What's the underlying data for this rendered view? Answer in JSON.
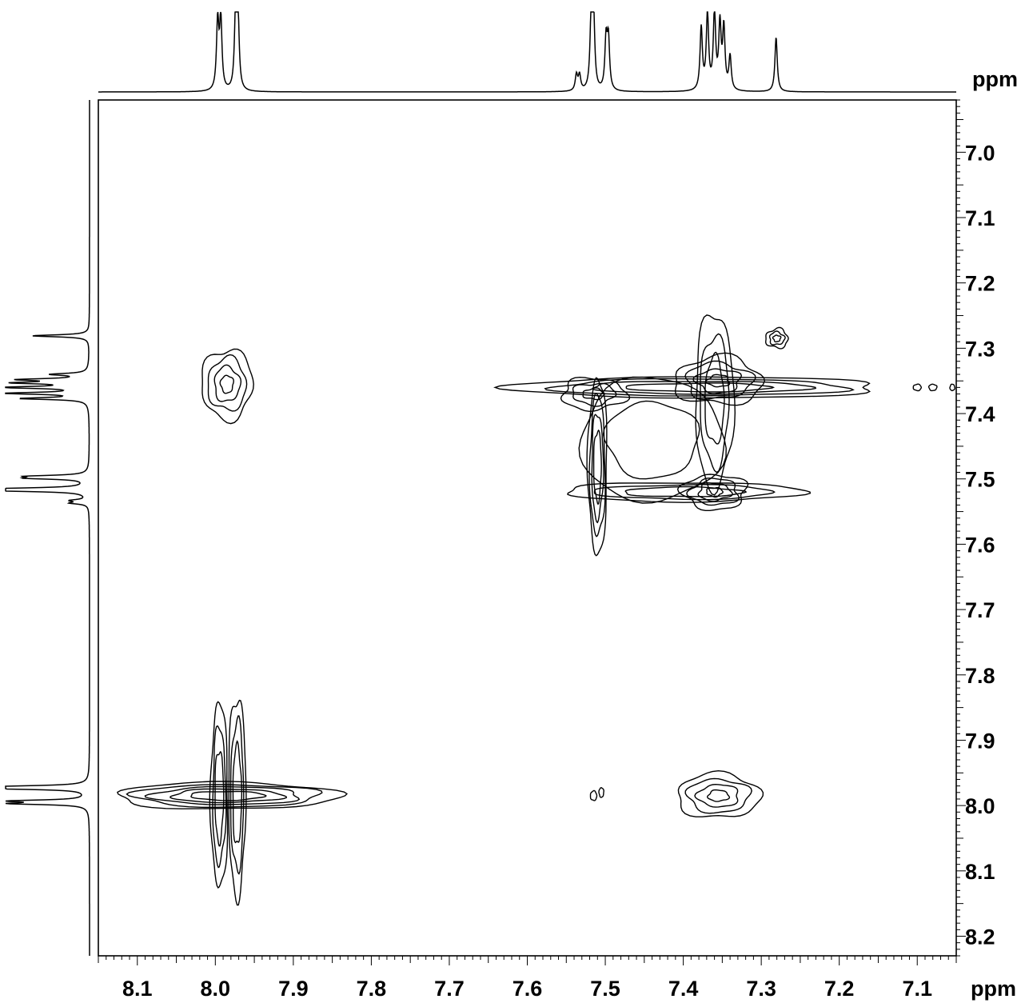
{
  "chart_data": {
    "type": "contour",
    "x_axis": {
      "unit": "ppm",
      "range": [
        8.15,
        7.05
      ],
      "reversed": true,
      "ticks": [
        8.1,
        8.0,
        7.9,
        7.8,
        7.7,
        7.6,
        7.5,
        7.4,
        7.3,
        7.2,
        7.1
      ],
      "tick_labels": [
        "8.1",
        "8.0",
        "7.9",
        "7.8",
        "7.7",
        "7.6",
        "7.5",
        "7.4",
        "7.3",
        "7.2",
        "7.1"
      ]
    },
    "y_axis": {
      "unit": "ppm",
      "range": [
        6.92,
        8.23
      ],
      "position": "right",
      "ticks": [
        7.0,
        7.1,
        7.2,
        7.3,
        7.4,
        7.5,
        7.6,
        7.7,
        7.8,
        7.9,
        8.0,
        8.1,
        8.2
      ],
      "tick_labels": [
        "7.0",
        "7.1",
        "7.2",
        "7.3",
        "7.4",
        "7.5",
        "7.6",
        "7.7",
        "7.8",
        "7.9",
        "8.0",
        "8.1",
        "8.2"
      ]
    },
    "projection_peaks": [
      {
        "ppm": 7.997,
        "height": 0.85
      },
      {
        "ppm": 7.993,
        "height": 0.87
      },
      {
        "ppm": 7.974,
        "height": 0.93
      },
      {
        "ppm": 7.971,
        "height": 0.92
      },
      {
        "ppm": 7.537,
        "height": 0.2
      },
      {
        "ppm": 7.533,
        "height": 0.19
      },
      {
        "ppm": 7.518,
        "height": 0.93
      },
      {
        "ppm": 7.515,
        "height": 0.88
      },
      {
        "ppm": 7.499,
        "height": 0.62
      },
      {
        "ppm": 7.496,
        "height": 0.62
      },
      {
        "ppm": 7.377,
        "height": 0.78
      },
      {
        "ppm": 7.369,
        "height": 0.95
      },
      {
        "ppm": 7.36,
        "height": 0.97
      },
      {
        "ppm": 7.353,
        "height": 0.8
      },
      {
        "ppm": 7.348,
        "height": 0.76
      },
      {
        "ppm": 7.34,
        "height": 0.42
      },
      {
        "ppm": 7.281,
        "height": 0.68
      }
    ],
    "cross_peaks": [
      {
        "x": 7.99,
        "y": 7.36
      },
      {
        "x": 7.51,
        "y": 7.36
      },
      {
        "x": 7.36,
        "y": 7.36
      },
      {
        "x": 7.28,
        "y": 7.28
      },
      {
        "x": 7.51,
        "y": 7.51
      },
      {
        "x": 7.36,
        "y": 7.52
      },
      {
        "x": 7.98,
        "y": 7.98
      },
      {
        "x": 7.36,
        "y": 7.98
      }
    ]
  }
}
